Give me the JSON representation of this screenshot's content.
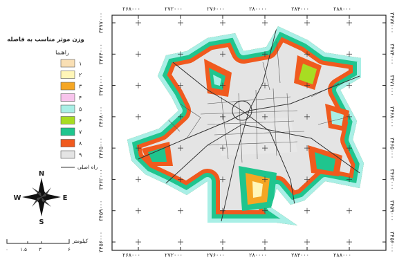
{
  "legend": {
    "title": "وزن موثر مناسب به فاصله",
    "subtitle": "راهنما",
    "classes": [
      {
        "label": "۱",
        "color": "#f9dfb4"
      },
      {
        "label": "۲",
        "color": "#fff6b8"
      },
      {
        "label": "۳",
        "color": "#f5a623"
      },
      {
        "label": "۴",
        "color": "#f7c4ec"
      },
      {
        "label": "۵",
        "color": "#a9efe6"
      },
      {
        "label": "۶",
        "color": "#a8dc22"
      },
      {
        "label": "۷",
        "color": "#1fc58e"
      },
      {
        "label": "۸",
        "color": "#f05a1e"
      },
      {
        "label": "۹",
        "color": "#e4e4e4"
      }
    ],
    "road": "راه اصلی"
  },
  "compass": {
    "north": "N",
    "south": "S",
    "east": "E",
    "west": "W"
  },
  "scale": {
    "unit": "کیلومتر",
    "labels": [
      "۰",
      "۱.۵",
      "۳",
      "۶"
    ]
  },
  "grid": {
    "x_labels": [
      "۲۶۸۰۰۰",
      "۲۷۲۰۰۰",
      "۲۷۶۰۰۰",
      "۲۸۰۰۰۰",
      "۲۸۴۰۰۰",
      "۲۸۸۰۰۰"
    ],
    "y_labels": [
      "۳۴۷۷۰۰۰",
      "۳۴۷۴۰۰۰",
      "۳۴۷۱۰۰۰",
      "۳۴۶۸۰۰۰",
      "۳۴۶۵۰۰۰",
      "۳۴۶۲۰۰۰",
      "۳۴۵۹۰۰۰",
      "۳۴۵۶۰۰۰"
    ]
  }
}
